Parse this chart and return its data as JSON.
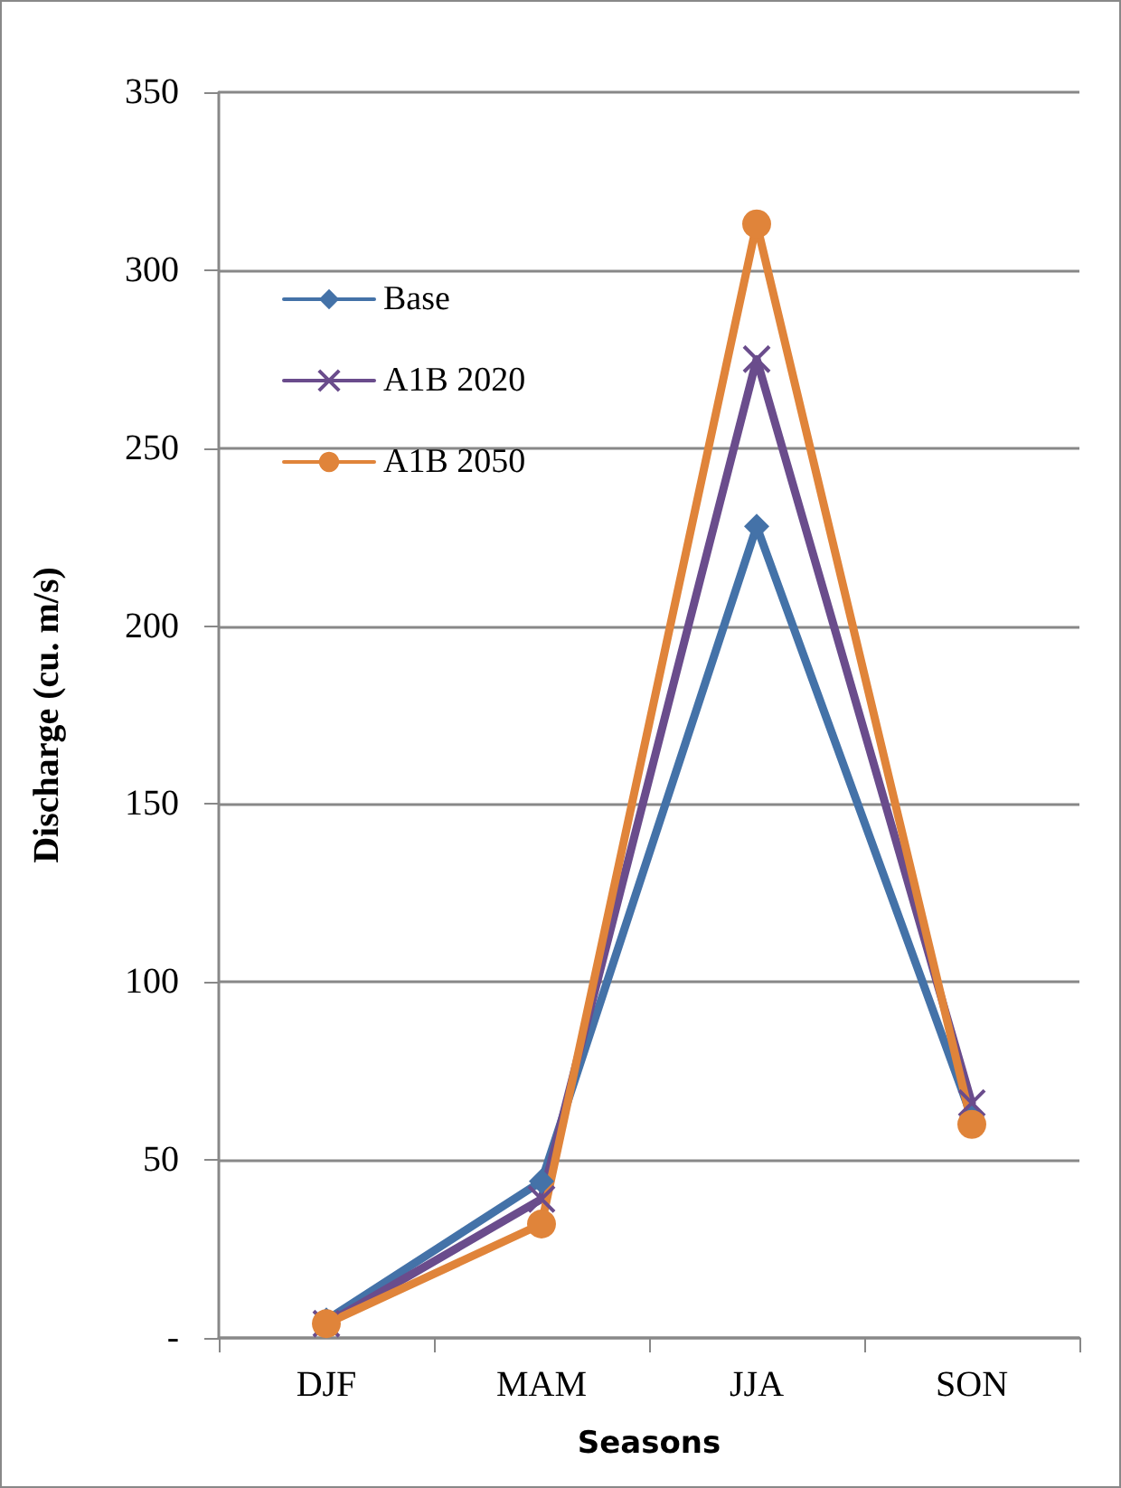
{
  "chart_data": {
    "type": "line",
    "xlabel": "Seasons",
    "ylabel": "Discharge (cu. m/s)",
    "categories": [
      "DJF",
      "MAM",
      "JJA",
      "SON"
    ],
    "series": [
      {
        "name": "Base",
        "color": "#4472a8",
        "marker": "diamond",
        "values": [
          5,
          44,
          228,
          62
        ]
      },
      {
        "name": "A1B 2020",
        "color": "#6a4c8c",
        "marker": "cross",
        "values": [
          4,
          39,
          275,
          66
        ]
      },
      {
        "name": "A1B 2050",
        "color": "#e0843a",
        "marker": "circle",
        "values": [
          4,
          32,
          313,
          60
        ]
      }
    ],
    "ylim": [
      0,
      350
    ],
    "yticks": [
      {
        "value": 0,
        "label": "-"
      },
      50,
      100,
      150,
      200,
      250,
      300,
      350
    ],
    "grid": "y",
    "legend": "top left"
  }
}
